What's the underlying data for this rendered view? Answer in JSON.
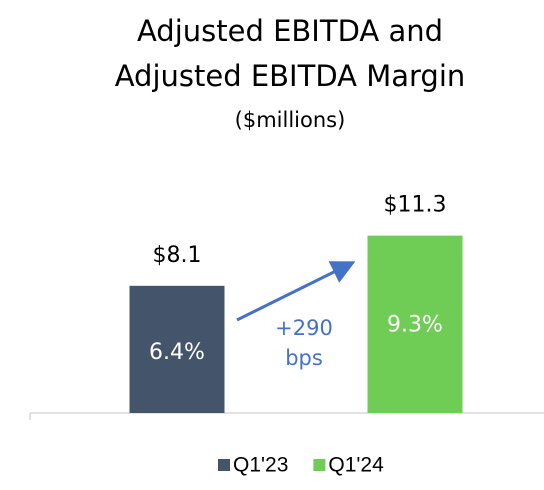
{
  "chart_data": {
    "type": "bar",
    "title": [
      "Adjusted EBITDA and",
      "Adjusted EBITDA Margin"
    ],
    "subtitle": "($millions)",
    "categories": [
      "Q1'23",
      "Q1'24"
    ],
    "values": [
      8.1,
      11.3
    ],
    "value_labels": [
      "$8.1",
      "$11.3"
    ],
    "colors": [
      "#44546a",
      "#6fcd55"
    ],
    "margins": {
      "values": [
        6.4,
        9.3
      ],
      "labels": [
        "6.4%",
        "9.3%"
      ]
    },
    "annotation": [
      "+290",
      "bps"
    ]
  }
}
